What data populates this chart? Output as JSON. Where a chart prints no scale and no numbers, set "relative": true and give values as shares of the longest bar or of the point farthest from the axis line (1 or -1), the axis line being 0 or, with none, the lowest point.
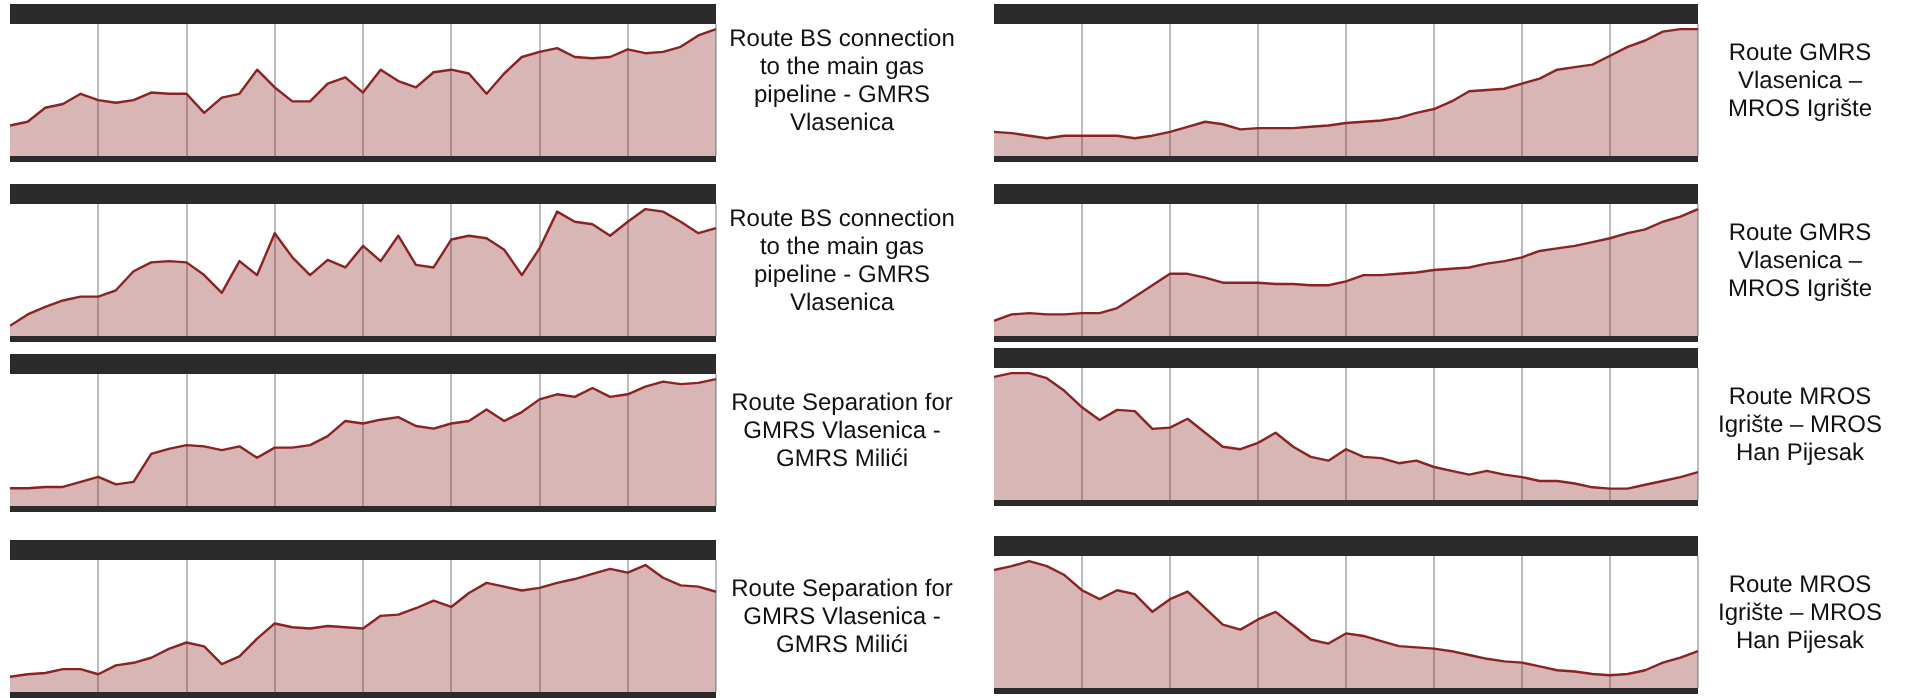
{
  "chart_data": [
    {
      "type": "area",
      "annotations": [
        "Route BS connection to the main gas pipeline - GMRS Vlasenica"
      ],
      "relative": true,
      "grid": "x",
      "categories": [
        null,
        null,
        null,
        null,
        null,
        null,
        null,
        null,
        null,
        null,
        null,
        null,
        null,
        null,
        null,
        null,
        null,
        null,
        null,
        null,
        null,
        null,
        null,
        null,
        null,
        null,
        null,
        null,
        null,
        null,
        null,
        null,
        null,
        null,
        null,
        null,
        null,
        null,
        null,
        null,
        null
      ],
      "series": [
        {
          "color": "#8b2323",
          "values": [
            0.24,
            0.27,
            0.38,
            0.41,
            0.49,
            0.44,
            0.42,
            0.44,
            0.5,
            0.49,
            0.49,
            0.34,
            0.46,
            0.49,
            0.68,
            0.54,
            0.43,
            0.43,
            0.57,
            0.62,
            0.5,
            0.68,
            0.59,
            0.54,
            0.66,
            0.68,
            0.65,
            0.49,
            0.65,
            0.78,
            0.82,
            0.85,
            0.78,
            0.77,
            0.78,
            0.84,
            0.81,
            0.82,
            0.86,
            0.95,
            1.0
          ]
        }
      ]
    },
    {
      "type": "area",
      "annotations": [
        "Route BS connection to the main gas pipeline - GMRS Vlasenica"
      ],
      "relative": true,
      "grid": "x",
      "categories": [
        null,
        null,
        null,
        null,
        null,
        null,
        null,
        null,
        null,
        null,
        null,
        null,
        null,
        null,
        null,
        null,
        null,
        null,
        null,
        null,
        null,
        null,
        null,
        null,
        null,
        null,
        null,
        null,
        null,
        null,
        null,
        null,
        null,
        null,
        null,
        null,
        null,
        null,
        null,
        null,
        null
      ],
      "series": [
        {
          "color": "#8b2323",
          "values": [
            0.08,
            0.17,
            0.23,
            0.28,
            0.31,
            0.31,
            0.36,
            0.51,
            0.58,
            0.59,
            0.58,
            0.48,
            0.34,
            0.59,
            0.48,
            0.81,
            0.62,
            0.48,
            0.6,
            0.54,
            0.71,
            0.59,
            0.79,
            0.56,
            0.54,
            0.76,
            0.79,
            0.77,
            0.68,
            0.48,
            0.69,
            0.98,
            0.9,
            0.88,
            0.79,
            0.9,
            1.0,
            0.98,
            0.9,
            0.81,
            0.85
          ]
        }
      ]
    },
    {
      "type": "area",
      "annotations": [
        "Route Separation for GMRS Vlasenica - GMRS Milići"
      ],
      "relative": true,
      "grid": "x",
      "categories": [
        null,
        null,
        null,
        null,
        null,
        null,
        null,
        null,
        null,
        null,
        null,
        null,
        null,
        null,
        null,
        null,
        null,
        null,
        null,
        null,
        null,
        null,
        null,
        null,
        null,
        null,
        null,
        null,
        null,
        null,
        null,
        null,
        null,
        null,
        null,
        null,
        null,
        null,
        null,
        null,
        null
      ],
      "series": [
        {
          "color": "#8b2323",
          "values": [
            0.14,
            0.14,
            0.15,
            0.15,
            0.19,
            0.23,
            0.17,
            0.19,
            0.41,
            0.45,
            0.48,
            0.47,
            0.44,
            0.47,
            0.38,
            0.46,
            0.46,
            0.48,
            0.55,
            0.67,
            0.65,
            0.68,
            0.7,
            0.63,
            0.61,
            0.65,
            0.67,
            0.76,
            0.67,
            0.74,
            0.84,
            0.88,
            0.86,
            0.93,
            0.86,
            0.88,
            0.94,
            0.98,
            0.96,
            0.97,
            1.0
          ]
        }
      ]
    },
    {
      "type": "area",
      "annotations": [
        "Route Separation for GMRS Vlasenica - GMRS Milići"
      ],
      "relative": true,
      "grid": "x",
      "categories": [
        null,
        null,
        null,
        null,
        null,
        null,
        null,
        null,
        null,
        null,
        null,
        null,
        null,
        null,
        null,
        null,
        null,
        null,
        null,
        null,
        null,
        null,
        null,
        null,
        null,
        null,
        null,
        null,
        null,
        null,
        null,
        null,
        null,
        null,
        null,
        null,
        null,
        null,
        null,
        null,
        null
      ],
      "series": [
        {
          "color": "#8b2323",
          "values": [
            0.12,
            0.14,
            0.15,
            0.18,
            0.18,
            0.14,
            0.21,
            0.23,
            0.27,
            0.34,
            0.39,
            0.36,
            0.22,
            0.28,
            0.42,
            0.54,
            0.51,
            0.5,
            0.52,
            0.51,
            0.5,
            0.6,
            0.61,
            0.66,
            0.72,
            0.67,
            0.78,
            0.86,
            0.83,
            0.8,
            0.82,
            0.86,
            0.89,
            0.93,
            0.97,
            0.94,
            1.0,
            0.9,
            0.84,
            0.83,
            0.79
          ]
        }
      ]
    },
    {
      "type": "area",
      "annotations": [
        "Route GMRS Vlasenica – MROS Igrište"
      ],
      "relative": true,
      "grid": "x",
      "categories": [
        null,
        null,
        null,
        null,
        null,
        null,
        null,
        null,
        null,
        null,
        null,
        null,
        null,
        null,
        null,
        null,
        null,
        null,
        null,
        null,
        null,
        null,
        null,
        null,
        null,
        null,
        null,
        null,
        null,
        null,
        null,
        null,
        null,
        null,
        null,
        null,
        null,
        null,
        null,
        null,
        null
      ],
      "series": [
        {
          "color": "#8b2323",
          "values": [
            0.19,
            0.18,
            0.16,
            0.14,
            0.16,
            0.16,
            0.16,
            0.16,
            0.14,
            0.16,
            0.19,
            0.23,
            0.27,
            0.25,
            0.21,
            0.22,
            0.22,
            0.22,
            0.23,
            0.24,
            0.26,
            0.27,
            0.28,
            0.3,
            0.34,
            0.37,
            0.43,
            0.51,
            0.52,
            0.53,
            0.57,
            0.61,
            0.68,
            0.7,
            0.72,
            0.79,
            0.86,
            0.91,
            0.98,
            1.0,
            1.0
          ]
        }
      ]
    },
    {
      "type": "area",
      "annotations": [
        "Route GMRS Vlasenica – MROS Igrište"
      ],
      "relative": true,
      "grid": "x",
      "categories": [
        null,
        null,
        null,
        null,
        null,
        null,
        null,
        null,
        null,
        null,
        null,
        null,
        null,
        null,
        null,
        null,
        null,
        null,
        null,
        null,
        null,
        null,
        null,
        null,
        null,
        null,
        null,
        null,
        null,
        null,
        null,
        null,
        null,
        null,
        null,
        null,
        null,
        null,
        null,
        null,
        null
      ],
      "series": [
        {
          "color": "#8b2323",
          "values": [
            0.12,
            0.17,
            0.18,
            0.17,
            0.17,
            0.18,
            0.18,
            0.22,
            0.31,
            0.4,
            0.49,
            0.49,
            0.46,
            0.42,
            0.42,
            0.42,
            0.41,
            0.41,
            0.4,
            0.4,
            0.43,
            0.48,
            0.48,
            0.49,
            0.5,
            0.52,
            0.53,
            0.54,
            0.57,
            0.59,
            0.62,
            0.67,
            0.69,
            0.71,
            0.74,
            0.77,
            0.81,
            0.84,
            0.9,
            0.94,
            1.0
          ]
        }
      ]
    },
    {
      "type": "area",
      "annotations": [
        "Route MROS Igrište – MROS Han Pijesak"
      ],
      "relative": true,
      "grid": "x",
      "categories": [
        null,
        null,
        null,
        null,
        null,
        null,
        null,
        null,
        null,
        null,
        null,
        null,
        null,
        null,
        null,
        null,
        null,
        null,
        null,
        null,
        null,
        null,
        null,
        null,
        null,
        null,
        null,
        null,
        null,
        null,
        null,
        null,
        null,
        null,
        null,
        null,
        null,
        null,
        null,
        null,
        null
      ],
      "series": [
        {
          "color": "#8b2323",
          "values": [
            0.97,
            1.0,
            1.0,
            0.96,
            0.86,
            0.73,
            0.63,
            0.71,
            0.7,
            0.56,
            0.57,
            0.64,
            0.53,
            0.42,
            0.4,
            0.45,
            0.53,
            0.42,
            0.34,
            0.31,
            0.4,
            0.34,
            0.33,
            0.29,
            0.31,
            0.26,
            0.23,
            0.2,
            0.23,
            0.2,
            0.18,
            0.15,
            0.15,
            0.13,
            0.1,
            0.09,
            0.09,
            0.12,
            0.15,
            0.18,
            0.22
          ]
        }
      ]
    },
    {
      "type": "area",
      "annotations": [
        "Route MROS Igrište – MROS Han Pijesak"
      ],
      "relative": true,
      "grid": "x",
      "categories": [
        null,
        null,
        null,
        null,
        null,
        null,
        null,
        null,
        null,
        null,
        null,
        null,
        null,
        null,
        null,
        null,
        null,
        null,
        null,
        null,
        null,
        null,
        null,
        null,
        null,
        null,
        null,
        null,
        null,
        null,
        null,
        null,
        null,
        null,
        null,
        null,
        null,
        null,
        null,
        null,
        null
      ],
      "series": [
        {
          "color": "#8b2323",
          "values": [
            0.93,
            0.96,
            1.0,
            0.96,
            0.89,
            0.77,
            0.7,
            0.77,
            0.74,
            0.6,
            0.7,
            0.76,
            0.63,
            0.5,
            0.46,
            0.54,
            0.6,
            0.49,
            0.38,
            0.35,
            0.43,
            0.41,
            0.37,
            0.33,
            0.32,
            0.31,
            0.29,
            0.26,
            0.23,
            0.21,
            0.2,
            0.17,
            0.14,
            0.13,
            0.11,
            0.1,
            0.11,
            0.14,
            0.2,
            0.24,
            0.29
          ]
        }
      ]
    }
  ]
}
